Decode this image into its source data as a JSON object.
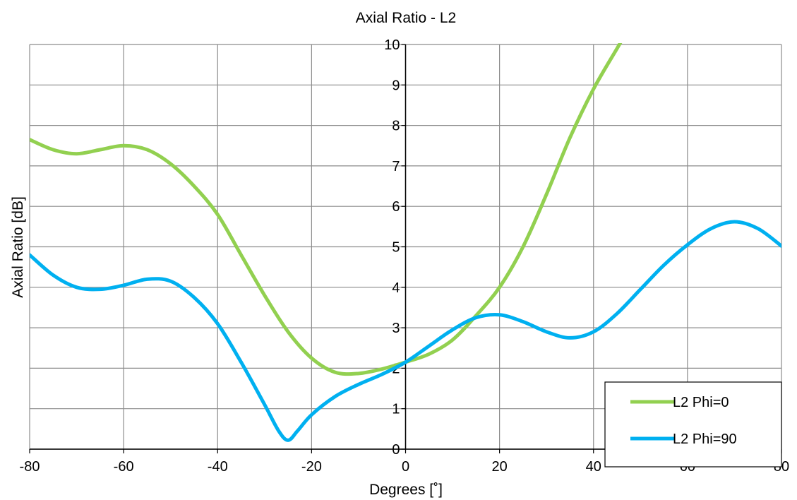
{
  "chart_data": {
    "type": "line",
    "title": "Axial Ratio - L2",
    "xlabel": "Degrees [˚]",
    "ylabel": "Axial Ratio [dB]",
    "xlim": [
      -80,
      80
    ],
    "ylim": [
      0,
      10
    ],
    "x_ticks": [
      "-80",
      "-60",
      "-40",
      "-20",
      "0",
      "20",
      "40",
      "60",
      "80"
    ],
    "y_ticks": [
      "0",
      "1",
      "2",
      "3",
      "4",
      "5",
      "6",
      "7",
      "8",
      "9",
      "10"
    ],
    "grid": true,
    "legend_position": "bottom-right",
    "series": [
      {
        "name": "L2 Phi=0",
        "color": "#92d050",
        "x": [
          -80,
          -75,
          -70,
          -65,
          -60,
          -55,
          -50,
          -45,
          -40,
          -35,
          -30,
          -25,
          -20,
          -15,
          -10,
          -5,
          0,
          5,
          10,
          15,
          20,
          25,
          30,
          35,
          40,
          45,
          46
        ],
        "y": [
          7.65,
          7.4,
          7.3,
          7.4,
          7.5,
          7.4,
          7.05,
          6.5,
          5.8,
          4.8,
          3.8,
          2.9,
          2.25,
          1.9,
          1.87,
          1.98,
          2.15,
          2.35,
          2.7,
          3.3,
          4.0,
          5.0,
          6.3,
          7.7,
          8.9,
          9.9,
          10.1
        ]
      },
      {
        "name": "L2 Phi=90",
        "color": "#00b0f0",
        "x": [
          -80,
          -75,
          -70,
          -65,
          -60,
          -55,
          -50,
          -45,
          -40,
          -35,
          -30,
          -27,
          -25,
          -23,
          -20,
          -15,
          -10,
          -5,
          0,
          5,
          10,
          15,
          20,
          25,
          30,
          35,
          40,
          45,
          50,
          55,
          60,
          65,
          70,
          75,
          80
        ],
        "y": [
          4.8,
          4.3,
          4.0,
          3.95,
          4.05,
          4.2,
          4.15,
          3.75,
          3.1,
          2.15,
          1.1,
          0.45,
          0.22,
          0.45,
          0.85,
          1.3,
          1.6,
          1.85,
          2.15,
          2.55,
          2.95,
          3.25,
          3.32,
          3.15,
          2.9,
          2.75,
          2.9,
          3.35,
          3.95,
          4.55,
          5.05,
          5.45,
          5.62,
          5.45,
          5.02
        ]
      }
    ]
  }
}
